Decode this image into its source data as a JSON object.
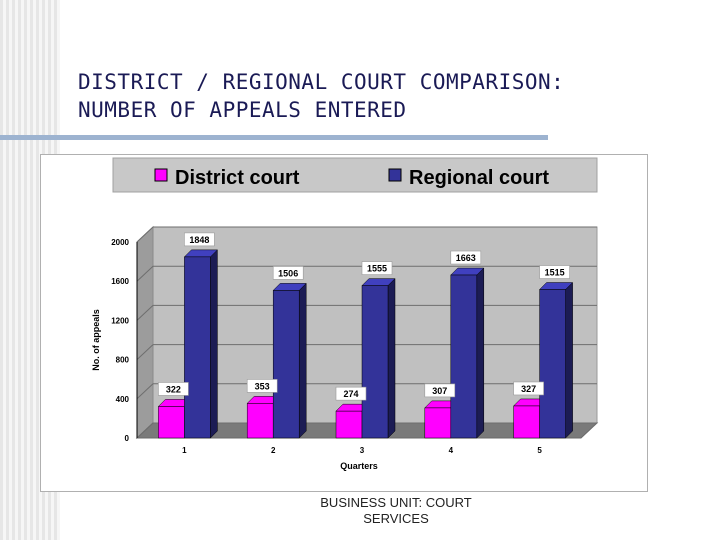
{
  "slide": {
    "title_line1": "DISTRICT / REGIONAL COURT COMPARISON:",
    "title_line2": "NUMBER OF APPEALS ENTERED",
    "footer_line1": "BUSINESS UNIT:  COURT",
    "footer_line2": "SERVICES"
  },
  "chart_data": {
    "type": "bar",
    "title": "",
    "xlabel": "Quarters",
    "ylabel": "No. of appeals",
    "categories": [
      "1",
      "2",
      "3",
      "4",
      "5"
    ],
    "yticks": [
      "0",
      "400",
      "800",
      "1200",
      "1600",
      "2000"
    ],
    "ylim": [
      0,
      2000
    ],
    "grid": true,
    "legend_position": "top",
    "series": [
      {
        "name": "District court",
        "color": "#ff00ff",
        "values": [
          322,
          353,
          274,
          307,
          327
        ]
      },
      {
        "name": "Regional court",
        "color": "#333399",
        "values": [
          1848,
          1506,
          1555,
          1663,
          1515
        ]
      }
    ]
  }
}
